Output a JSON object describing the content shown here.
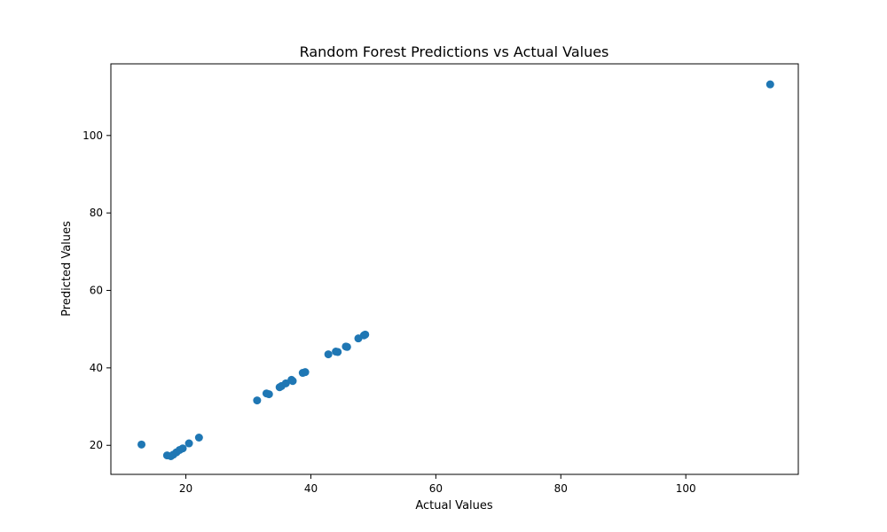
{
  "chart_data": {
    "type": "scatter",
    "title": "Random Forest Predictions vs Actual Values",
    "xlabel": "Actual Values",
    "ylabel": "Predicted Values",
    "xlim": [
      8.0,
      118.0
    ],
    "ylim": [
      12.5,
      118.5
    ],
    "xticks": [
      20,
      40,
      60,
      80,
      100
    ],
    "yticks": [
      20,
      40,
      60,
      80,
      100
    ],
    "grid": false,
    "marker_color": "#1f77b4",
    "points": [
      {
        "x": 12.9,
        "y": 20.2
      },
      {
        "x": 17.0,
        "y": 17.4
      },
      {
        "x": 17.6,
        "y": 17.2
      },
      {
        "x": 18.0,
        "y": 17.6
      },
      {
        "x": 18.5,
        "y": 18.2
      },
      {
        "x": 19.0,
        "y": 18.8
      },
      {
        "x": 19.5,
        "y": 19.2
      },
      {
        "x": 20.5,
        "y": 20.5
      },
      {
        "x": 22.1,
        "y": 22.0
      },
      {
        "x": 31.4,
        "y": 31.6
      },
      {
        "x": 32.9,
        "y": 33.4
      },
      {
        "x": 33.3,
        "y": 33.2
      },
      {
        "x": 35.0,
        "y": 35.0
      },
      {
        "x": 35.3,
        "y": 35.3
      },
      {
        "x": 36.0,
        "y": 36.0
      },
      {
        "x": 36.9,
        "y": 36.9
      },
      {
        "x": 37.1,
        "y": 36.6
      },
      {
        "x": 38.7,
        "y": 38.7
      },
      {
        "x": 39.1,
        "y": 38.9
      },
      {
        "x": 42.8,
        "y": 43.5
      },
      {
        "x": 44.0,
        "y": 44.2
      },
      {
        "x": 44.3,
        "y": 44.1
      },
      {
        "x": 45.6,
        "y": 45.5
      },
      {
        "x": 45.8,
        "y": 45.4
      },
      {
        "x": 47.6,
        "y": 47.6
      },
      {
        "x": 48.5,
        "y": 48.4
      },
      {
        "x": 48.7,
        "y": 48.6
      },
      {
        "x": 113.5,
        "y": 113.2
      }
    ]
  }
}
